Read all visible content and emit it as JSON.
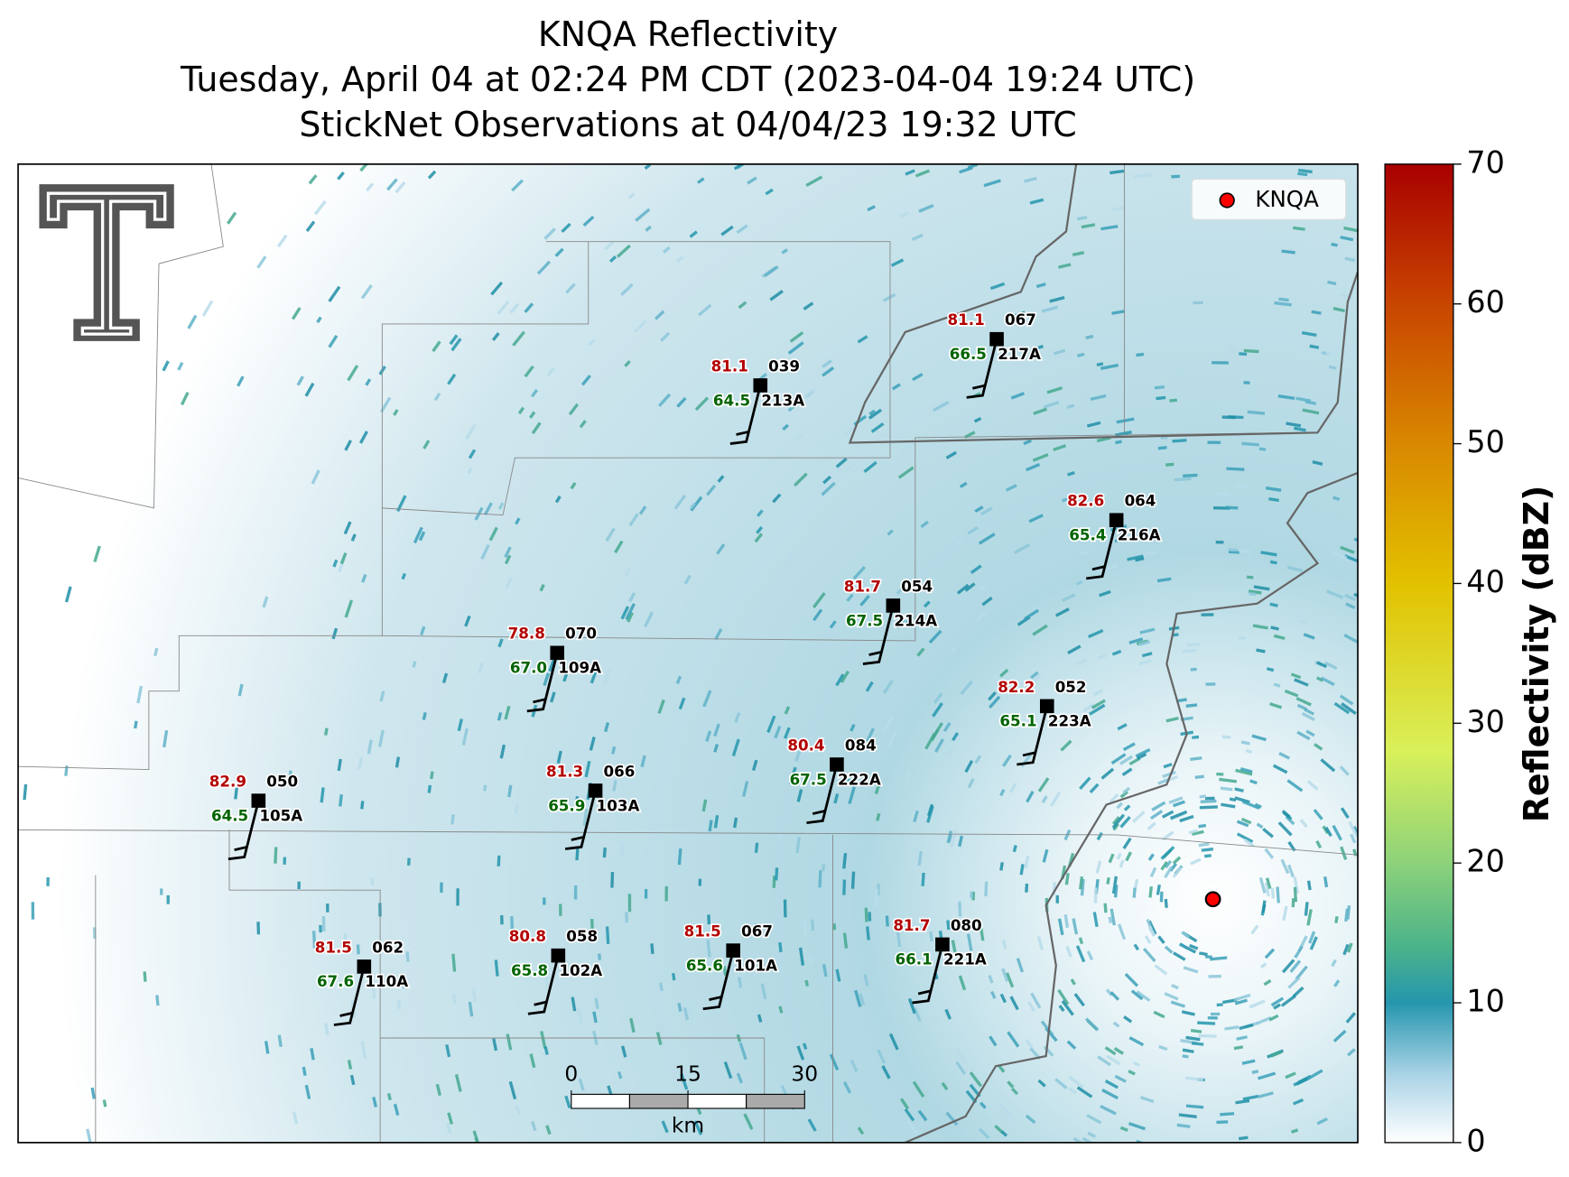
{
  "title": {
    "line1": "KNQA Reflectivity",
    "line2": "Tuesday, April 04 at 02:24 PM CDT (2023-04-04 19:24 UTC)",
    "line3": "StickNet Observations at 04/04/23 19:32 UTC"
  },
  "legend": {
    "label": "KNQA",
    "color": "#ff0000"
  },
  "colorbar": {
    "label": "Reflectivity (dBZ)",
    "lim": [
      0,
      70
    ],
    "ticks": [
      0,
      10,
      20,
      30,
      40,
      50,
      60,
      70
    ]
  },
  "scale_bar": {
    "ticks": [
      0,
      15,
      30
    ],
    "unit": "km"
  },
  "stations": [
    {
      "id": "213A",
      "temperature": "81.1",
      "dewpoint": "64.5",
      "pressure": "039"
    },
    {
      "id": "217A",
      "temperature": "81.1",
      "dewpoint": "66.5",
      "pressure": "067"
    },
    {
      "id": "216A",
      "temperature": "82.6",
      "dewpoint": "65.4",
      "pressure": "064"
    },
    {
      "id": "214A",
      "temperature": "81.7",
      "dewpoint": "67.5",
      "pressure": "054"
    },
    {
      "id": "109A",
      "temperature": "78.8",
      "dewpoint": "67.0",
      "pressure": "070"
    },
    {
      "id": "223A",
      "temperature": "82.2",
      "dewpoint": "65.1",
      "pressure": "052"
    },
    {
      "id": "222A",
      "temperature": "80.4",
      "dewpoint": "67.5",
      "pressure": "084"
    },
    {
      "id": "103A",
      "temperature": "81.3",
      "dewpoint": "65.9",
      "pressure": "066"
    },
    {
      "id": "105A",
      "temperature": "82.9",
      "dewpoint": "64.5",
      "pressure": "050"
    },
    {
      "id": "221A",
      "temperature": "81.7",
      "dewpoint": "66.1",
      "pressure": "080"
    },
    {
      "id": "101A",
      "temperature": "81.5",
      "dewpoint": "65.6",
      "pressure": "067"
    },
    {
      "id": "102A",
      "temperature": "80.8",
      "dewpoint": "65.8",
      "pressure": "058"
    },
    {
      "id": "110A",
      "temperature": "81.5",
      "dewpoint": "67.6",
      "pressure": "062"
    }
  ]
}
